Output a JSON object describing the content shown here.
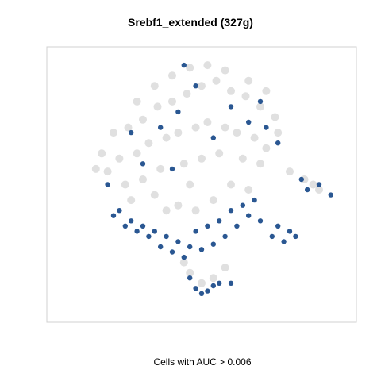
{
  "chart_data": {
    "type": "scatter",
    "title": "Srebf1_extended (327g)",
    "xlabel": "Cells with AUC > 0.006",
    "ylabel": "",
    "grid": false,
    "colors": {
      "below_threshold": "#d3d3d3",
      "above_threshold": "#1f4e8c"
    },
    "series": [
      {
        "name": "",
        "color": "#d3d3d3",
        "points": [
          [
            0.2,
            0.7
          ],
          [
            0.25,
            0.72
          ],
          [
            0.3,
            0.75
          ],
          [
            0.35,
            0.8
          ],
          [
            0.4,
            0.82
          ],
          [
            0.45,
            0.85
          ],
          [
            0.5,
            0.88
          ],
          [
            0.55,
            0.9
          ],
          [
            0.6,
            0.86
          ],
          [
            0.65,
            0.84
          ],
          [
            0.7,
            0.8
          ],
          [
            0.75,
            0.76
          ],
          [
            0.22,
            0.6
          ],
          [
            0.28,
            0.62
          ],
          [
            0.32,
            0.66
          ],
          [
            0.38,
            0.68
          ],
          [
            0.42,
            0.7
          ],
          [
            0.48,
            0.72
          ],
          [
            0.52,
            0.74
          ],
          [
            0.58,
            0.72
          ],
          [
            0.62,
            0.7
          ],
          [
            0.68,
            0.68
          ],
          [
            0.72,
            0.64
          ],
          [
            0.18,
            0.55
          ],
          [
            0.24,
            0.5
          ],
          [
            0.3,
            0.52
          ],
          [
            0.36,
            0.56
          ],
          [
            0.44,
            0.58
          ],
          [
            0.5,
            0.6
          ],
          [
            0.56,
            0.62
          ],
          [
            0.64,
            0.6
          ],
          [
            0.7,
            0.58
          ],
          [
            0.8,
            0.55
          ],
          [
            0.85,
            0.52
          ],
          [
            0.88,
            0.5
          ],
          [
            0.9,
            0.48
          ],
          [
            0.4,
            0.92
          ],
          [
            0.46,
            0.95
          ],
          [
            0.52,
            0.96
          ],
          [
            0.58,
            0.94
          ],
          [
            0.34,
            0.88
          ],
          [
            0.28,
            0.82
          ],
          [
            0.66,
            0.9
          ],
          [
            0.72,
            0.86
          ],
          [
            0.76,
            0.7
          ],
          [
            0.16,
            0.62
          ],
          [
            0.14,
            0.56
          ],
          [
            0.26,
            0.44
          ],
          [
            0.34,
            0.46
          ],
          [
            0.46,
            0.5
          ],
          [
            0.6,
            0.5
          ],
          [
            0.66,
            0.48
          ],
          [
            0.54,
            0.44
          ],
          [
            0.48,
            0.4
          ],
          [
            0.42,
            0.42
          ],
          [
            0.38,
            0.4
          ],
          [
            0.46,
            0.16
          ],
          [
            0.5,
            0.12
          ],
          [
            0.54,
            0.14
          ],
          [
            0.58,
            0.18
          ],
          [
            0.44,
            0.2
          ]
        ]
      },
      {
        "name": "",
        "color": "#1f4e8c",
        "points": [
          [
            0.22,
            0.4
          ],
          [
            0.26,
            0.36
          ],
          [
            0.3,
            0.34
          ],
          [
            0.34,
            0.32
          ],
          [
            0.38,
            0.3
          ],
          [
            0.42,
            0.28
          ],
          [
            0.46,
            0.26
          ],
          [
            0.5,
            0.25
          ],
          [
            0.54,
            0.27
          ],
          [
            0.58,
            0.3
          ],
          [
            0.62,
            0.34
          ],
          [
            0.66,
            0.38
          ],
          [
            0.7,
            0.36
          ],
          [
            0.74,
            0.3
          ],
          [
            0.78,
            0.28
          ],
          [
            0.8,
            0.32
          ],
          [
            0.82,
            0.3
          ],
          [
            0.76,
            0.34
          ],
          [
            0.48,
            0.1
          ],
          [
            0.5,
            0.08
          ],
          [
            0.52,
            0.09
          ],
          [
            0.54,
            0.11
          ],
          [
            0.56,
            0.12
          ],
          [
            0.46,
            0.14
          ],
          [
            0.6,
            0.12
          ],
          [
            0.44,
            0.22
          ],
          [
            0.4,
            0.24
          ],
          [
            0.36,
            0.26
          ],
          [
            0.32,
            0.3
          ],
          [
            0.28,
            0.32
          ],
          [
            0.24,
            0.34
          ],
          [
            0.2,
            0.38
          ],
          [
            0.56,
            0.36
          ],
          [
            0.6,
            0.4
          ],
          [
            0.64,
            0.42
          ],
          [
            0.68,
            0.44
          ],
          [
            0.52,
            0.34
          ],
          [
            0.48,
            0.32
          ],
          [
            0.86,
            0.48
          ],
          [
            0.9,
            0.5
          ],
          [
            0.94,
            0.46
          ],
          [
            0.84,
            0.52
          ],
          [
            0.4,
            0.56
          ],
          [
            0.3,
            0.58
          ],
          [
            0.18,
            0.5
          ],
          [
            0.6,
            0.8
          ],
          [
            0.66,
            0.74
          ],
          [
            0.48,
            0.88
          ],
          [
            0.42,
            0.78
          ],
          [
            0.36,
            0.72
          ],
          [
            0.54,
            0.68
          ],
          [
            0.72,
            0.72
          ],
          [
            0.26,
            0.7
          ],
          [
            0.44,
            0.96
          ],
          [
            0.7,
            0.82
          ],
          [
            0.76,
            0.66
          ]
        ]
      }
    ]
  }
}
